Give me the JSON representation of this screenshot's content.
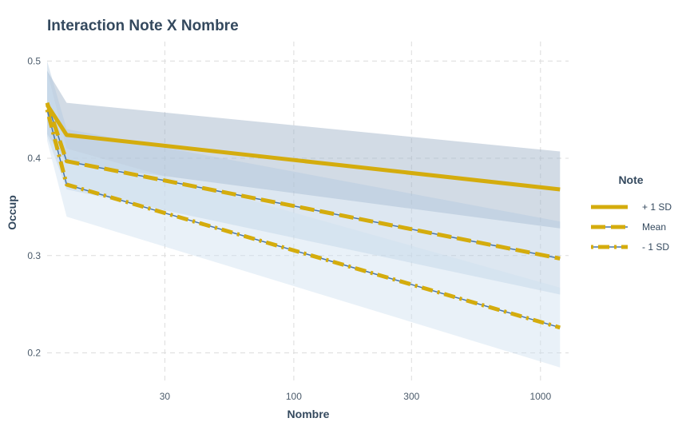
{
  "chart_data": {
    "type": "line",
    "title": "Interaction Note X Nombre",
    "xlabel": "Nombre",
    "ylabel": "Occup",
    "x_scale": "log",
    "xlim": [
      10,
      1300
    ],
    "ylim": [
      0.17,
      0.52
    ],
    "x_ticks": [
      30,
      100,
      300,
      1000
    ],
    "x_tick_labels": [
      "30",
      "100",
      "300",
      "1000"
    ],
    "y_ticks": [
      0.2,
      0.3,
      0.4,
      0.5
    ],
    "y_tick_labels": [
      "0.2",
      "0.3",
      "0.4",
      "0.5"
    ],
    "grid": true,
    "legend_position": "right",
    "legend_title": "Note",
    "x": [
      10,
      12,
      1200
    ],
    "series": [
      {
        "name": "+ 1 SD",
        "line_style": "solid",
        "color": "#d4ac0d",
        "band_color": "#9bafc6",
        "values": [
          0.455,
          0.424,
          0.368
        ],
        "lower": [
          0.425,
          0.395,
          0.328
        ],
        "upper": [
          0.49,
          0.457,
          0.407
        ]
      },
      {
        "name": "Mean",
        "line_style": "dashed",
        "color": "#d4ac0d",
        "band_color": "#b4c9df",
        "values": [
          0.457,
          0.397,
          0.297
        ],
        "lower": [
          0.423,
          0.368,
          0.26
        ],
        "upper": [
          0.5,
          0.43,
          0.335
        ]
      },
      {
        "name": "- 1 SD",
        "line_style": "dotdash",
        "color": "#d4ac0d",
        "band_color": "#cfe0f0",
        "values": [
          0.45,
          0.373,
          0.226
        ],
        "lower": [
          0.418,
          0.34,
          0.185
        ],
        "upper": [
          0.49,
          0.41,
          0.267
        ]
      }
    ]
  }
}
